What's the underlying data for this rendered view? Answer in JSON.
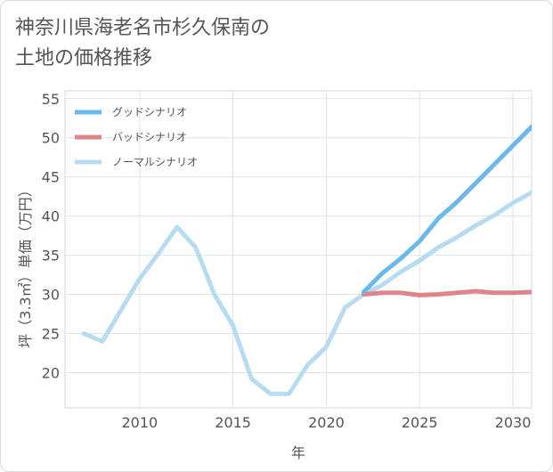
{
  "title_lines": [
    "神奈川県海老名市杉久保南の",
    "土地の価格推移"
  ],
  "chart_data": {
    "type": "line",
    "title": "神奈川県海老名市杉久保南の土地の価格推移",
    "xlabel": "年",
    "ylabel": "坪（3.3㎡）単価（万円）",
    "xlim": [
      2006,
      2031
    ],
    "ylim": [
      15.5,
      56
    ],
    "xticks": [
      2010,
      2015,
      2020,
      2025,
      2030
    ],
    "yticks": [
      20,
      25,
      30,
      35,
      40,
      45,
      50,
      55
    ],
    "legend_position": "top-left",
    "series": [
      {
        "name": "グッドシナリオ",
        "color": "#6cb8ea",
        "x": [
          2022,
          2023,
          2024,
          2025,
          2026,
          2027,
          2028,
          2029,
          2030,
          2031
        ],
        "y": [
          30.3,
          32.7,
          34.6,
          36.8,
          39.7,
          41.8,
          44.2,
          46.6,
          49.0,
          51.4
        ]
      },
      {
        "name": "バッドシナリオ",
        "color": "#e0848c",
        "x": [
          2022,
          2023,
          2024,
          2025,
          2026,
          2027,
          2028,
          2029,
          2030,
          2031
        ],
        "y": [
          30.0,
          30.2,
          30.2,
          29.9,
          30.0,
          30.2,
          30.4,
          30.2,
          30.2,
          30.3
        ]
      },
      {
        "name": "ノーマルシナリオ",
        "color": "#b8dcef",
        "x": [
          2007,
          2008,
          2009,
          2010,
          2011,
          2012,
          2013,
          2014,
          2015,
          2016,
          2017,
          2018,
          2019,
          2020,
          2021,
          2022,
          2023,
          2024,
          2025,
          2026,
          2027,
          2028,
          2029,
          2030,
          2031
        ],
        "y": [
          25.0,
          24.0,
          28.0,
          32.0,
          35.2,
          38.6,
          36.0,
          30.0,
          26.0,
          19.2,
          17.3,
          17.3,
          21.0,
          23.3,
          28.3,
          30.0,
          31.2,
          32.9,
          34.3,
          36.0,
          37.3,
          38.8,
          40.1,
          41.7,
          43.0
        ]
      }
    ]
  }
}
